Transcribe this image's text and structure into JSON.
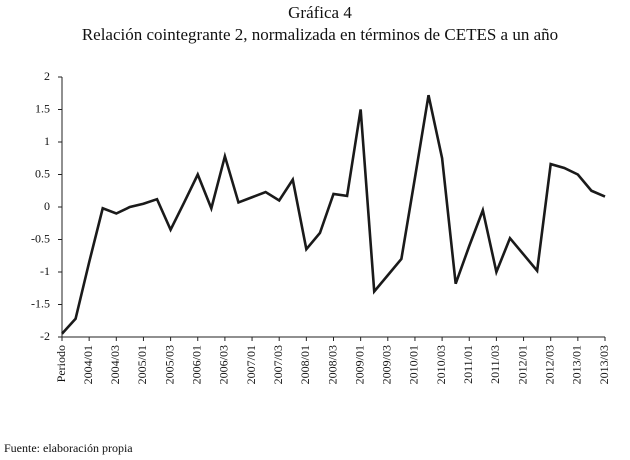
{
  "chart_data": {
    "type": "line",
    "title": "Gráfica 4",
    "subtitle": "Relación cointegrante 2, normalizada en términos de CETES a un año",
    "source": "Fuente: elaboración propia",
    "categories": [
      "Periodo",
      null,
      "2004/01",
      null,
      "2004/03",
      null,
      "2005/01",
      null,
      "2005/03",
      null,
      "2006/01",
      null,
      "2006/03",
      null,
      "2007/01",
      null,
      "2007/03",
      null,
      "2008/01",
      null,
      "2008/03",
      null,
      "2009/01",
      null,
      "2009/03",
      null,
      "2010/01",
      null,
      "2010/03",
      null,
      "2011/01",
      null,
      "2011/03",
      null,
      "2012/01",
      null,
      "2012/03",
      null,
      "2013/01",
      null,
      "2013/03"
    ],
    "series": [
      {
        "name": "Relación cointegrante 2",
        "color": "#1a1a1a",
        "values": [
          -1.95,
          -1.72,
          -0.85,
          -0.02,
          -0.1,
          0.0,
          0.05,
          0.12,
          -0.35,
          0.07,
          0.5,
          -0.02,
          0.78,
          0.07,
          0.15,
          0.23,
          0.1,
          0.42,
          -0.65,
          -0.4,
          0.2,
          0.17,
          1.5,
          -1.3,
          -1.05,
          -0.8,
          0.45,
          1.72,
          0.75,
          -1.18,
          -0.6,
          -0.05,
          -1.0,
          -0.48,
          -0.73,
          -0.98,
          0.66,
          0.6,
          0.5,
          0.25,
          0.16
        ]
      }
    ],
    "ylim": [
      -2,
      2
    ],
    "yticks": [
      -2,
      -1.5,
      -1,
      -0.5,
      0,
      0.5,
      1,
      1.5,
      2
    ],
    "grid": false
  }
}
